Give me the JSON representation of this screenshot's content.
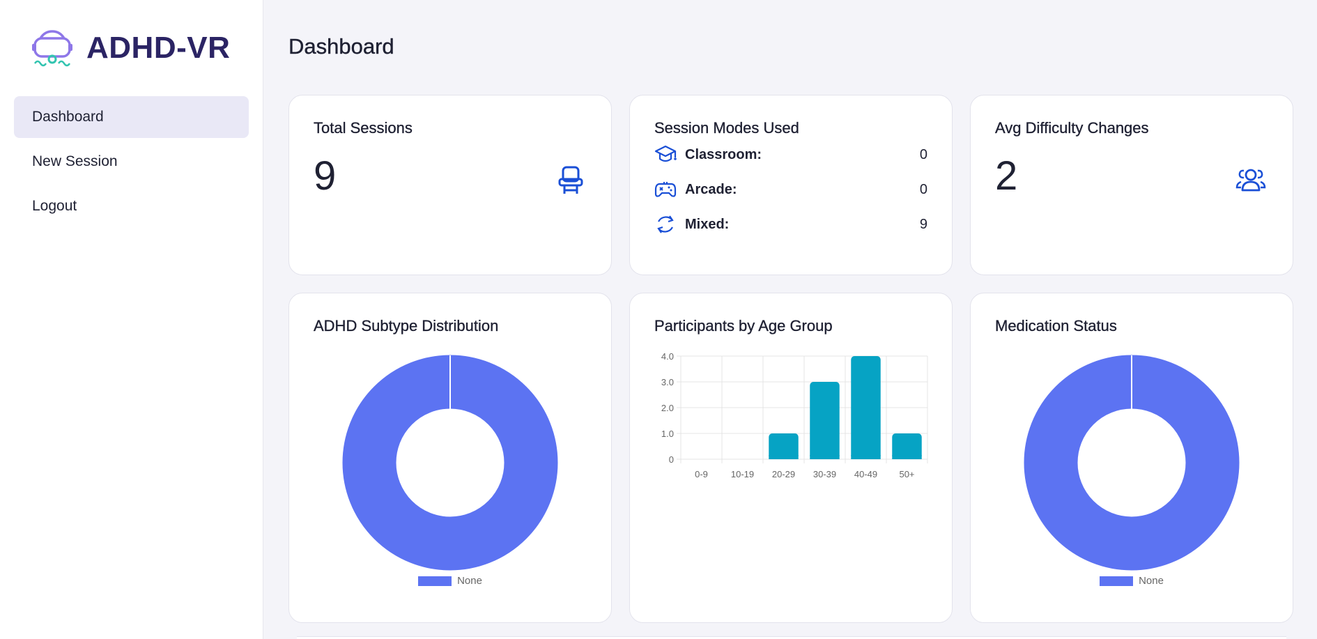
{
  "app": {
    "name": "ADHD-VR"
  },
  "sidebar": {
    "items": [
      {
        "label": "Dashboard",
        "active": true
      },
      {
        "label": "New Session",
        "active": false
      },
      {
        "label": "Logout",
        "active": false
      }
    ]
  },
  "page": {
    "title": "Dashboard"
  },
  "cards": {
    "total_sessions": {
      "title": "Total Sessions",
      "value": "9",
      "icon": "chair-icon"
    },
    "session_modes": {
      "title": "Session Modes Used",
      "rows": [
        {
          "label": "Classroom:",
          "value": "0",
          "icon": "graduation-cap-icon"
        },
        {
          "label": "Arcade:",
          "value": "0",
          "icon": "gamepad-icon"
        },
        {
          "label": "Mixed:",
          "value": "9",
          "icon": "refresh-icon"
        }
      ]
    },
    "avg_difficulty": {
      "title": "Avg Difficulty Changes",
      "value": "2",
      "icon": "users-icon"
    },
    "adhd_subtype": {
      "title": "ADHD Subtype Distribution"
    },
    "age_group": {
      "title": "Participants by Age Group"
    },
    "medication": {
      "title": "Medication Status"
    }
  },
  "colors": {
    "accent": "#5c73f2",
    "bar": "#06a3c4",
    "icon": "#1a4fd6",
    "brand": "#2b2464"
  },
  "chart_data": [
    {
      "type": "pie",
      "title": "ADHD Subtype Distribution",
      "labels": [
        "None"
      ],
      "values": [
        1
      ],
      "donut": true,
      "legend": "bottom"
    },
    {
      "type": "bar",
      "title": "Participants by Age Group",
      "categories": [
        "0-9",
        "10-19",
        "20-29",
        "30-39",
        "40-49",
        "50+"
      ],
      "values": [
        0,
        0,
        1,
        3,
        4,
        1
      ],
      "ylim": [
        0,
        4
      ],
      "yticks": [
        "0",
        "1.0",
        "2.0",
        "3.0",
        "4.0"
      ],
      "grid": true
    },
    {
      "type": "pie",
      "title": "Medication Status",
      "labels": [
        "None"
      ],
      "values": [
        1
      ],
      "donut": true,
      "legend": "bottom"
    }
  ]
}
